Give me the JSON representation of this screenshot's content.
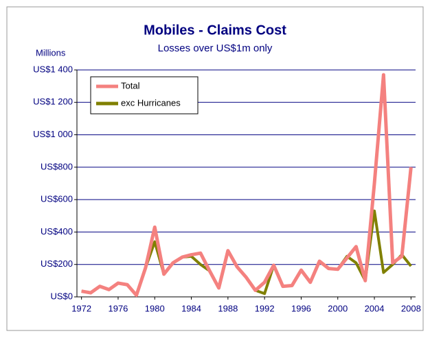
{
  "chart_data": {
    "type": "line",
    "title": "Mobiles - Claims Cost",
    "subtitle": "Losses over US$1m only",
    "y_unit": "Millions",
    "categories": [
      1972,
      null,
      null,
      null,
      1976,
      null,
      null,
      null,
      1980,
      null,
      null,
      null,
      1984,
      null,
      null,
      null,
      1988,
      null,
      null,
      null,
      1992,
      null,
      null,
      null,
      1996,
      null,
      null,
      null,
      2000,
      null,
      null,
      null,
      2004,
      null,
      null,
      null,
      2008
    ],
    "series": [
      {
        "name": "Total",
        "color": "#f4817f",
        "values": [
          35,
          25,
          65,
          45,
          85,
          75,
          10,
          180,
          430,
          140,
          210,
          245,
          260,
          270,
          160,
          55,
          285,
          185,
          120,
          40,
          90,
          195,
          65,
          70,
          165,
          90,
          220,
          175,
          170,
          240,
          310,
          100,
          700,
          1370,
          210,
          250,
          800
        ]
      },
      {
        "name": "exc Hurricanes",
        "color": "#808000",
        "values": [
          35,
          25,
          65,
          45,
          85,
          75,
          10,
          180,
          340,
          140,
          210,
          245,
          250,
          200,
          160,
          55,
          285,
          185,
          120,
          40,
          20,
          195,
          65,
          70,
          165,
          90,
          220,
          175,
          170,
          250,
          210,
          100,
          530,
          150,
          200,
          260,
          190
        ]
      }
    ],
    "ylim": [
      0,
      1400
    ],
    "yticks": [
      {
        "value": 0,
        "label": "US$0"
      },
      {
        "value": 200,
        "label": "US$200"
      },
      {
        "value": 400,
        "label": "US$400"
      },
      {
        "value": 600,
        "label": "US$600"
      },
      {
        "value": 800,
        "label": "US$800"
      },
      {
        "value": 1000,
        "label": "US$1 000"
      },
      {
        "value": 1200,
        "label": "US$1 200"
      },
      {
        "value": 1400,
        "label": "US$1 400"
      }
    ],
    "grid": true,
    "legend": "top-left"
  }
}
